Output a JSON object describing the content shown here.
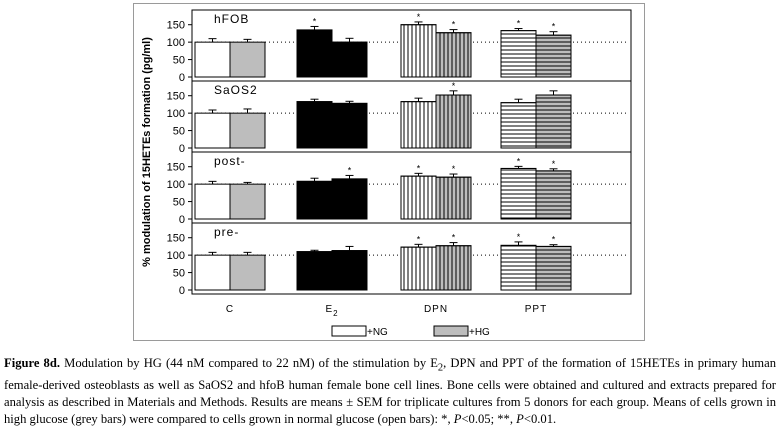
{
  "chart_data": {
    "type": "bar",
    "ylabel": "% modulation of 15HETEs formation (pg/ml)",
    "categories": [
      "C",
      "E",
      "DPN",
      "PPT"
    ],
    "category_subscripts": [
      "",
      "2",
      "",
      ""
    ],
    "series_names": [
      "+NG",
      "+HG"
    ],
    "ylim": [
      0,
      175
    ],
    "yticks": [
      "0",
      "50",
      "100",
      "150"
    ],
    "reference_line": 100,
    "significance_marker": "*",
    "patterns": [
      "none",
      "diagonal",
      "vertical",
      "horizontal"
    ],
    "colors": {
      "ng": "#ffffff",
      "hg": "#bdbdbd",
      "edge": "#000000"
    },
    "panels": [
      {
        "name": "hFOB",
        "ng": [
          100,
          135,
          150,
          133
        ],
        "ng_err": [
          10,
          10,
          8,
          6
        ],
        "hg": [
          100,
          100,
          127,
          120
        ],
        "hg_err": [
          8,
          11,
          9,
          10
        ],
        "ng_sig": [
          false,
          true,
          true,
          true
        ],
        "hg_sig": [
          false,
          false,
          true,
          true
        ]
      },
      {
        "name": "SaOS2",
        "ng": [
          100,
          133,
          133,
          130
        ],
        "ng_err": [
          9,
          7,
          10,
          10
        ],
        "hg": [
          100,
          128,
          152,
          152
        ],
        "hg_err": [
          12,
          6,
          12,
          12
        ],
        "ng_sig": [
          false,
          false,
          false,
          false
        ],
        "hg_sig": [
          false,
          false,
          true,
          false
        ]
      },
      {
        "name": "post-",
        "ng": [
          100,
          108,
          123,
          145
        ],
        "ng_err": [
          8,
          9,
          8,
          6
        ],
        "hg": [
          100,
          115,
          120,
          138
        ],
        "hg_err": [
          5,
          10,
          9,
          6
        ],
        "ng_sig": [
          false,
          false,
          true,
          true
        ],
        "hg_sig": [
          false,
          true,
          true,
          true
        ]
      },
      {
        "name": "pre-",
        "ng": [
          100,
          110,
          123,
          128
        ],
        "ng_err": [
          8,
          4,
          8,
          10
        ],
        "hg": [
          100,
          113,
          127,
          125
        ],
        "hg_err": [
          8,
          12,
          9,
          5
        ],
        "ng_sig": [
          false,
          false,
          true,
          true
        ],
        "hg_sig": [
          false,
          false,
          true,
          true
        ]
      }
    ]
  },
  "caption": {
    "label": "Figure 8d.",
    "text_1": " Modulation by HG (44 nM compared to 22 nM) of the stimulation by E",
    "subscript": "2",
    "text_2": ", DPN and PPT of the formation of 15HETEs in primary human female-derived osteoblasts as well as SaOS2 and hfoB human female bone cell lines. Bone cells were obtained and cultured and extracts prepared for analysis as described in Materials and Methods. Results are means ± SEM for triplicate cultures from 5 donors for each group. Means of cells grown in high glucose (grey bars) were compared to cells grown in normal glucose (open bars): *, ",
    "p1": "P",
    "text_3": "<0.05; **, ",
    "p2": "P",
    "text_4": "<0.01."
  }
}
